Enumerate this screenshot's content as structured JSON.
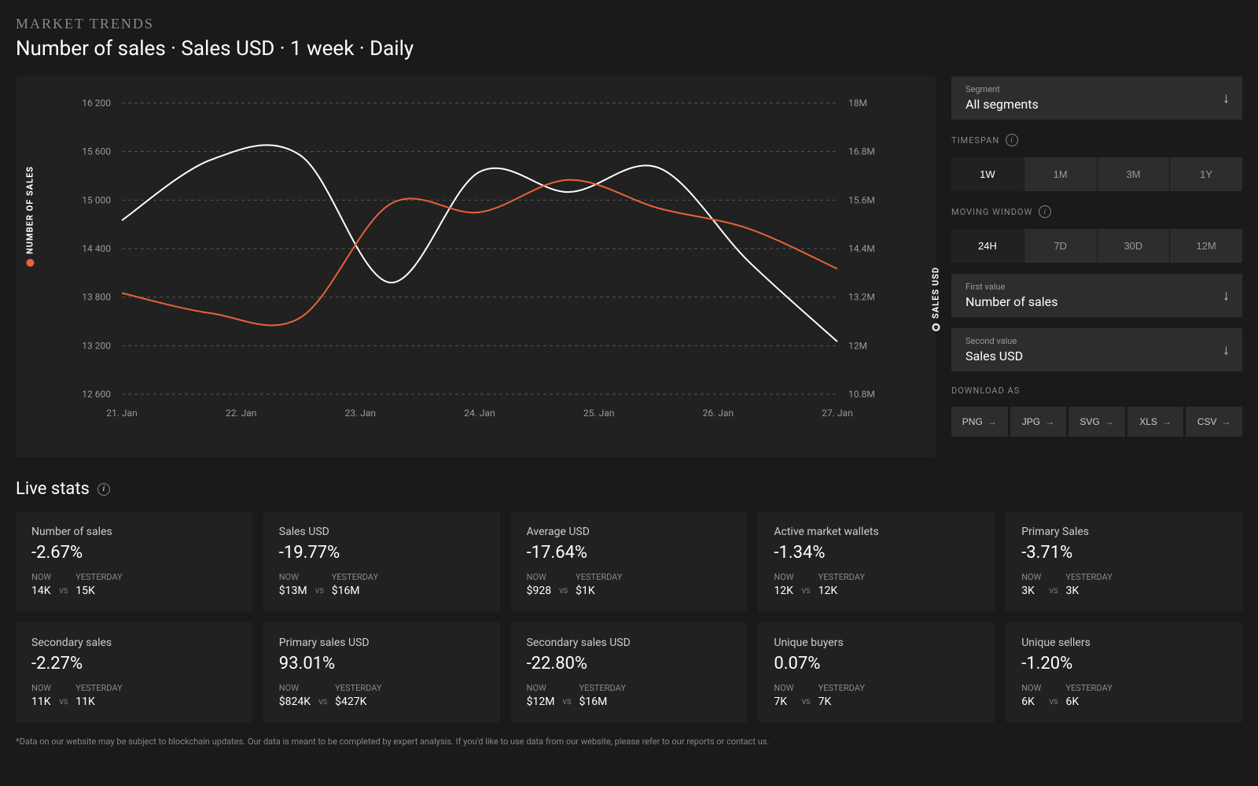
{
  "header": {
    "small_title": "MARKET TRENDS",
    "main_title": "Number of sales · Sales USD · 1 week · Daily"
  },
  "chart": {
    "left_axis_label": "NUMBER OF SALES",
    "right_axis_label": "SALES USD",
    "left_color": "#e8623a",
    "right_color": "#ffffff",
    "background_color": "#212121",
    "grid_color": "#555555",
    "grid_dash": "4 4",
    "x_labels": [
      "21. Jan",
      "22. Jan",
      "23. Jan",
      "24. Jan",
      "25. Jan",
      "26. Jan",
      "27. Jan"
    ],
    "left_ticks": [
      "16 200",
      "15 600",
      "15 000",
      "14 400",
      "13 800",
      "13 200",
      "12 600"
    ],
    "right_ticks": [
      "18M",
      "16.8M",
      "15.6M",
      "14.4M",
      "13.2M",
      "12M",
      "10.8M"
    ],
    "left_ylim": [
      12600,
      16200
    ],
    "right_ylim": [
      10800000,
      18000000
    ],
    "line_width": 2,
    "series_left": {
      "color": "#e8623a",
      "points": [
        13850,
        13600,
        13550,
        14950,
        14850,
        15250,
        14900,
        14650,
        14150
      ]
    },
    "series_right": {
      "color": "#ffffff",
      "points": [
        14750,
        15500,
        15550,
        13980,
        15350,
        15100,
        15400,
        14250,
        13250
      ]
    },
    "axis_font_size": 12,
    "axis_text_color": "#999999"
  },
  "controls": {
    "segment": {
      "label": "Segment",
      "value": "All segments"
    },
    "timespan": {
      "label": "TIMESPAN",
      "options": [
        "1W",
        "1M",
        "3M",
        "1Y"
      ],
      "active": "1W"
    },
    "moving_window": {
      "label": "MOVING WINDOW",
      "options": [
        "24H",
        "7D",
        "30D",
        "12M"
      ],
      "active": "24H"
    },
    "first_value": {
      "label": "First value",
      "value": "Number of sales"
    },
    "second_value": {
      "label": "Second value",
      "value": "Sales USD"
    },
    "download": {
      "label": "DOWNLOAD AS",
      "options": [
        "PNG",
        "JPG",
        "SVG",
        "XLS",
        "CSV"
      ]
    }
  },
  "livestats": {
    "title": "Live stats",
    "now_label": "NOW",
    "yesterday_label": "YESTERDAY",
    "vs_label": "VS",
    "cards": [
      {
        "title": "Number of sales",
        "pct": "-2.67%",
        "now": "14K",
        "yest": "15K"
      },
      {
        "title": "Sales USD",
        "pct": "-19.77%",
        "now": "$13M",
        "yest": "$16M"
      },
      {
        "title": "Average USD",
        "pct": "-17.64%",
        "now": "$928",
        "yest": "$1K"
      },
      {
        "title": "Active market wallets",
        "pct": "-1.34%",
        "now": "12K",
        "yest": "12K"
      },
      {
        "title": "Primary Sales",
        "pct": "-3.71%",
        "now": "3K",
        "yest": "3K"
      },
      {
        "title": "Secondary sales",
        "pct": "-2.27%",
        "now": "11K",
        "yest": "11K"
      },
      {
        "title": "Primary sales USD",
        "pct": "93.01%",
        "now": "$824K",
        "yest": "$427K"
      },
      {
        "title": "Secondary sales USD",
        "pct": "-22.80%",
        "now": "$12M",
        "yest": "$16M"
      },
      {
        "title": "Unique buyers",
        "pct": "0.07%",
        "now": "7K",
        "yest": "7K"
      },
      {
        "title": "Unique sellers",
        "pct": "-1.20%",
        "now": "6K",
        "yest": "6K"
      }
    ]
  },
  "footnote": "*Data on our website may be subject to blockchain updates. Our data is meant to be completed by expert analysis. If you'd like to use data from our website, please refer to our reports or contact us."
}
